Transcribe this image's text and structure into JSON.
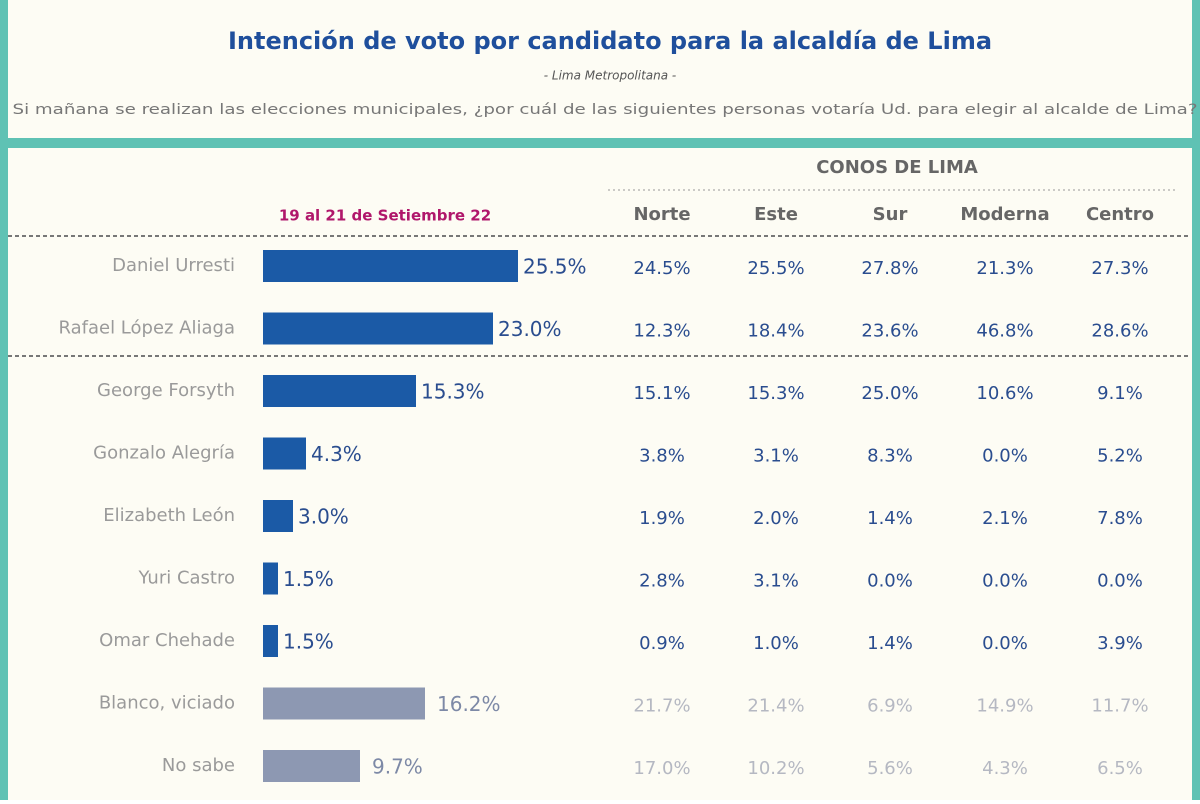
{
  "header": {
    "title": "Intención de voto por candidato para la alcaldía de Lima",
    "subtitle": "- Lima Metropolitana -",
    "question": "Si mañana se realizan las elecciones municipales, ¿por cuál de las siguientes personas votaría Ud. para elegir al alcalde de Lima?"
  },
  "chart_data": {
    "type": "bar",
    "orientation": "horizontal",
    "period_label": "19 al 21 de Setiembre 22",
    "categories": [
      "Daniel Urresti",
      "Rafael López Aliaga",
      "George Forsyth",
      "Gonzalo Alegría",
      "Elizabeth León",
      "Yuri Castro",
      "Omar Chehade",
      "Blanco, viciado",
      "No sabe"
    ],
    "values": [
      25.5,
      23.0,
      15.3,
      4.3,
      3.0,
      1.5,
      1.5,
      16.2,
      9.7
    ],
    "value_labels": [
      "25.5%",
      "23.0%",
      "15.3%",
      "4.3%",
      "3.0%",
      "1.5%",
      "1.5%",
      "16.2%",
      "9.7%"
    ],
    "colors": [
      "#1b5aa6",
      "#1b5aa6",
      "#1b5aa6",
      "#1b5aa6",
      "#1b5aa6",
      "#1b5aa6",
      "#1b5aa6",
      "#8d98b2",
      "#8d98b2"
    ]
  },
  "table": {
    "group_header": "CONOS DE LIMA",
    "columns": [
      "Norte",
      "Este",
      "Sur",
      "Moderna",
      "Centro"
    ],
    "rows": [
      [
        "24.5%",
        "25.5%",
        "27.8%",
        "21.3%",
        "27.3%"
      ],
      [
        "12.3%",
        "18.4%",
        "23.6%",
        "46.8%",
        "28.6%"
      ],
      [
        "15.1%",
        "15.3%",
        "25.0%",
        "10.6%",
        "9.1%"
      ],
      [
        "3.8%",
        "3.1%",
        "8.3%",
        "0.0%",
        "5.2%"
      ],
      [
        "1.9%",
        "2.0%",
        "1.4%",
        "2.1%",
        "7.8%"
      ],
      [
        "2.8%",
        "3.1%",
        "0.0%",
        "0.0%",
        "0.0%"
      ],
      [
        "0.9%",
        "1.0%",
        "1.4%",
        "0.0%",
        "3.9%"
      ],
      [
        "21.7%",
        "21.4%",
        "6.9%",
        "14.9%",
        "11.7%"
      ],
      [
        "17.0%",
        "10.2%",
        "5.6%",
        "4.3%",
        "6.5%"
      ]
    ]
  }
}
